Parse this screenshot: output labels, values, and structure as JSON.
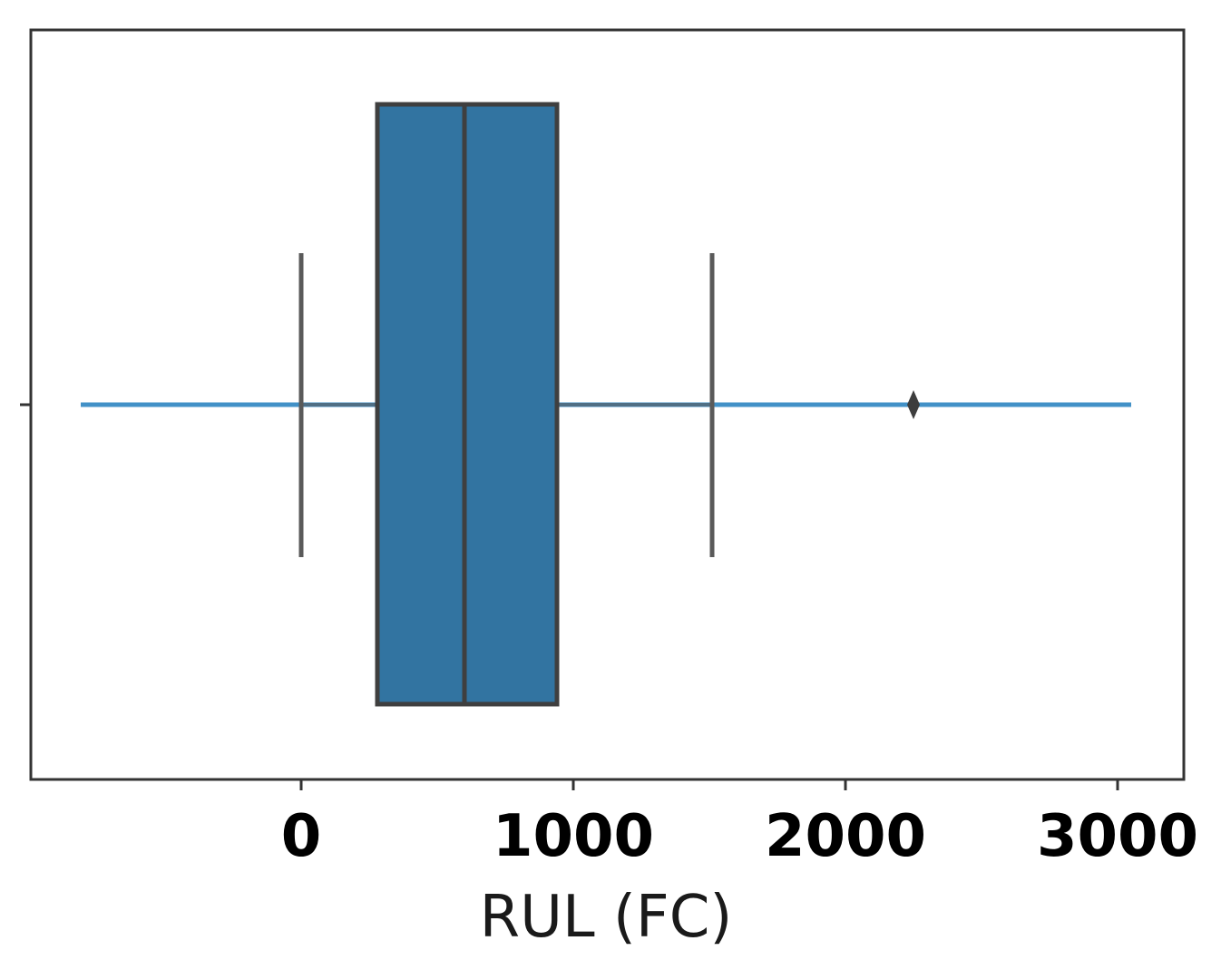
{
  "chart_data": {
    "type": "boxplot",
    "orientation": "horizontal",
    "xlabel": "RUL (FC)",
    "ylabel": "",
    "title": "",
    "xticks": [
      0,
      1000,
      2000,
      3000
    ],
    "xlim": [
      -1000,
      3240
    ],
    "box": {
      "whisker_low": 0,
      "q1": 280,
      "median": 600,
      "q3": 940,
      "whisker_high": 1510
    },
    "outliers": [
      2250
    ],
    "reference_line": {
      "x_start": -810,
      "x_end": 3050
    },
    "grid": false,
    "legend": "none",
    "colors": {
      "box_fill": "#3274a1",
      "box_edge": "#3f3f3f",
      "whisker": "#5a5a5a",
      "reference_line": "#2e86c1",
      "axes": "#333333"
    }
  }
}
